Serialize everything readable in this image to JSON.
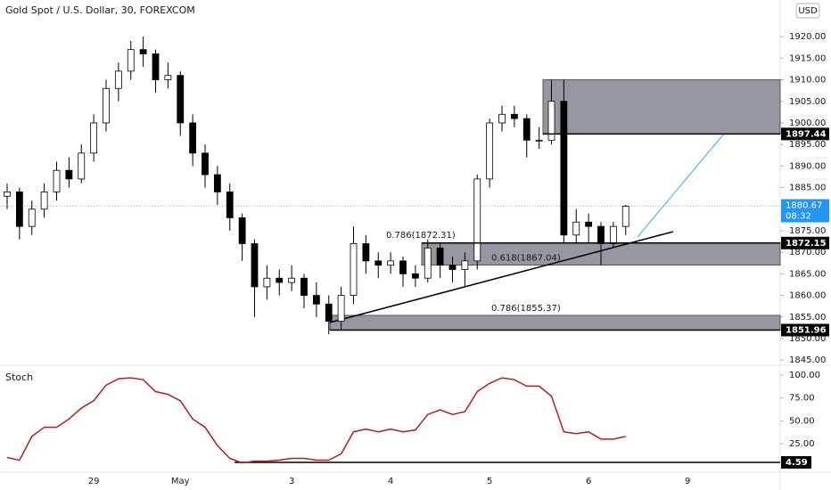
{
  "chart_data": [
    {
      "type": "candlestick",
      "title": "Gold Spot / U.S. Dollar, 30, FOREXCOM",
      "currency": "USD",
      "countdown": "08:32",
      "categories": [
        null,
        null,
        null,
        null,
        null,
        null,
        null,
        "29",
        null,
        null,
        null,
        null,
        null,
        null,
        "May",
        null,
        null,
        null,
        null,
        null,
        null,
        null,
        null,
        "3",
        null,
        null,
        null,
        null,
        null,
        null,
        null,
        "4",
        null,
        null,
        null,
        null,
        null,
        null,
        null,
        "5",
        null,
        null,
        null,
        null,
        null,
        null,
        null,
        "6",
        null,
        null,
        null,
        null,
        null,
        null,
        null,
        "9"
      ],
      "candles": {
        "open": [
          1883,
          1884,
          1876,
          1880,
          1884,
          1889,
          1887,
          1893,
          1900,
          1908,
          1912,
          1917,
          1916,
          1910,
          1911,
          1900,
          1893,
          1888,
          1884,
          1878,
          1872,
          1862,
          1864,
          1863,
          1864,
          1860,
          1858,
          1854,
          1860,
          1872,
          1868,
          1867,
          1868,
          1865,
          1864,
          1871,
          1867,
          1866,
          1868,
          1887,
          1900,
          1902,
          1901,
          1896,
          1896,
          1905,
          1874,
          1877,
          1876,
          1872,
          1876,
          null,
          null,
          null,
          null,
          null
        ],
        "high": [
          1886,
          1885,
          1882,
          1886,
          1891,
          1892,
          1895,
          1902,
          1910,
          1914,
          1919,
          1920,
          1917,
          1914,
          1912,
          1902,
          1895,
          1890,
          1886,
          1879,
          1873,
          1867,
          1866,
          1867,
          1865,
          1863,
          1860,
          1862,
          1876,
          1874,
          1870,
          1870,
          1869,
          1867,
          1873,
          1872,
          1869,
          1870,
          1888,
          1901,
          1904,
          1904,
          1902,
          1899,
          1910,
          1910,
          1880,
          1879,
          1877,
          1877,
          1881,
          null,
          null,
          null,
          null,
          null
        ],
        "low": [
          1880,
          1873,
          1874,
          1878,
          1882,
          1885,
          1886,
          1891,
          1898,
          1905,
          1910,
          1913,
          1907,
          1908,
          1897,
          1890,
          1885,
          1881,
          1875,
          1868,
          1855,
          1859,
          1860,
          1861,
          1857,
          1855,
          1851,
          1852,
          1858,
          1865,
          1864,
          1865,
          1862,
          1862,
          1863,
          1864,
          1863,
          1862,
          1866,
          1885,
          1898,
          1899,
          1892,
          1894,
          1895,
          1872,
          1872,
          1872,
          1867,
          1871,
          1874,
          null,
          null,
          null,
          null,
          null
        ],
        "close": [
          1884,
          1876,
          1880,
          1884,
          1889,
          1887,
          1893,
          1900,
          1908,
          1912,
          1917,
          1916,
          1910,
          1911,
          1900,
          1893,
          1888,
          1884,
          1878,
          1872,
          1862,
          1864,
          1863,
          1864,
          1860,
          1858,
          1854,
          1860,
          1872,
          1868,
          1867,
          1868,
          1865,
          1864,
          1871,
          1867,
          1866,
          1868,
          1887,
          1900,
          1902,
          1901,
          1896,
          1896,
          1905,
          1874,
          1877,
          1876,
          1872,
          1876,
          1880.67,
          null,
          null,
          null,
          null,
          null
        ]
      },
      "ylim": [
        1843.8,
        1928.5
      ],
      "yticks": [
        {
          "value": 1845,
          "label": "1845.00"
        },
        {
          "value": 1850,
          "label": "1850.00"
        },
        {
          "value": 1855,
          "label": "1855.00"
        },
        {
          "value": 1860,
          "label": "1860.00"
        },
        {
          "value": 1865,
          "label": "1865.00"
        },
        {
          "value": 1870,
          "label": "1870.00"
        },
        {
          "value": 1875,
          "label": "1875.00"
        },
        {
          "value": 1880,
          "label": "1880.00"
        },
        {
          "value": 1885,
          "label": "1885.00"
        },
        {
          "value": 1890,
          "label": "1890.00"
        },
        {
          "value": 1895,
          "label": "1895.00"
        },
        {
          "value": 1900,
          "label": "1900.00"
        },
        {
          "value": 1905,
          "label": "1905.00"
        },
        {
          "value": 1910,
          "label": "1910.00"
        },
        {
          "value": 1915,
          "label": "1915.00"
        },
        {
          "value": 1920,
          "label": "1920.00"
        }
      ],
      "zones": [
        {
          "top": 1910,
          "bottom": 1897.44
        },
        {
          "top": 1872.15,
          "bottom": 1867.04
        },
        {
          "top": 1855.37,
          "bottom": 1851.96
        }
      ],
      "levels": [
        1897.44,
        1872.15,
        1851.96
      ],
      "fib_labels": [
        {
          "text": "0.786(1872.31)",
          "value": 1872.31
        },
        {
          "text": "0.618(1867.04)",
          "value": 1867.04
        },
        {
          "text": "0.786(1855.37)",
          "value": 1855.37
        }
      ]
    },
    {
      "type": "line",
      "title": "Stoch",
      "color": "#b71c1c",
      "values": [
        10,
        7,
        33,
        43,
        43,
        52,
        64,
        72,
        89,
        96,
        97,
        95,
        82,
        79,
        72,
        52,
        43,
        23,
        9,
        4,
        6,
        6,
        7,
        9,
        9,
        7,
        7,
        14,
        38,
        41,
        38,
        41,
        38,
        40,
        57,
        62,
        57,
        60,
        82,
        91,
        97,
        95,
        88,
        88,
        77,
        38,
        36,
        38,
        30,
        30,
        33,
        null,
        null,
        null,
        null,
        null
      ],
      "ylim": [
        -6.1,
        108.8
      ],
      "yticks": [
        {
          "value": 25,
          "label": "25.00"
        },
        {
          "value": 50,
          "label": "50.00"
        },
        {
          "value": 75,
          "label": "75.00"
        },
        {
          "value": 100,
          "label": "100.00"
        }
      ],
      "min_level": 4.59
    }
  ]
}
